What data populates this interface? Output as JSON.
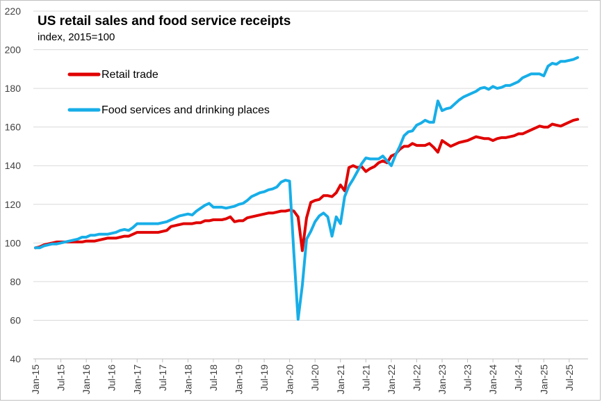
{
  "chart_data": {
    "type": "line",
    "title": "US retail sales and food service receipts",
    "subtitle": "index, 2015=100",
    "xlabel": "",
    "ylabel": "",
    "ylim": [
      40,
      220
    ],
    "yticks": [
      40,
      60,
      80,
      100,
      120,
      140,
      160,
      180,
      200,
      220
    ],
    "x_start": "2015-01",
    "x_end": "2025-09",
    "x_ticks": [
      "Jan-15",
      "Jul-15",
      "Jan-16",
      "Jul-16",
      "Jan-17",
      "Jul-17",
      "Jan-18",
      "Jul-18",
      "Jan-19",
      "Jul-19",
      "Jan-20",
      "Jul-20",
      "Jan-21",
      "Jul-21",
      "Jan-22",
      "Jul-22",
      "Jan-23",
      "Jul-23",
      "Jan-24",
      "Jul-24",
      "Jan-25",
      "Jul-25"
    ],
    "grid": "horizontal",
    "legend_position": "top-left",
    "series": [
      {
        "name": "Retail trade",
        "color": "#e00000",
        "points": [
          [
            "2015-01",
            97.5
          ],
          [
            "2015-02",
            98.0
          ],
          [
            "2015-03",
            99.0
          ],
          [
            "2015-04",
            99.5
          ],
          [
            "2015-05",
            100.0
          ],
          [
            "2015-06",
            100.5
          ],
          [
            "2015-07",
            100.5
          ],
          [
            "2015-08",
            100.5
          ],
          [
            "2015-09",
            100.5
          ],
          [
            "2015-10",
            100.5
          ],
          [
            "2015-11",
            100.5
          ],
          [
            "2015-12",
            100.5
          ],
          [
            "2016-01",
            101.0
          ],
          [
            "2016-02",
            101.0
          ],
          [
            "2016-03",
            101.0
          ],
          [
            "2016-04",
            101.5
          ],
          [
            "2016-05",
            102.0
          ],
          [
            "2016-06",
            102.5
          ],
          [
            "2016-07",
            102.5
          ],
          [
            "2016-08",
            102.5
          ],
          [
            "2016-09",
            103.0
          ],
          [
            "2016-10",
            103.5
          ],
          [
            "2016-11",
            103.5
          ],
          [
            "2016-12",
            104.5
          ],
          [
            "2017-01",
            105.5
          ],
          [
            "2017-02",
            105.5
          ],
          [
            "2017-03",
            105.5
          ],
          [
            "2017-04",
            105.5
          ],
          [
            "2017-05",
            105.5
          ],
          [
            "2017-06",
            105.5
          ],
          [
            "2017-07",
            106.0
          ],
          [
            "2017-08",
            106.5
          ],
          [
            "2017-09",
            108.5
          ],
          [
            "2017-10",
            109.0
          ],
          [
            "2017-11",
            109.5
          ],
          [
            "2017-12",
            110.0
          ],
          [
            "2018-01",
            110.0
          ],
          [
            "2018-02",
            110.0
          ],
          [
            "2018-03",
            110.5
          ],
          [
            "2018-04",
            110.5
          ],
          [
            "2018-05",
            111.5
          ],
          [
            "2018-06",
            111.5
          ],
          [
            "2018-07",
            112.0
          ],
          [
            "2018-08",
            112.0
          ],
          [
            "2018-09",
            112.0
          ],
          [
            "2018-10",
            112.5
          ],
          [
            "2018-11",
            113.5
          ],
          [
            "2018-12",
            111.0
          ],
          [
            "2019-01",
            111.5
          ],
          [
            "2019-02",
            111.5
          ],
          [
            "2019-03",
            113.0
          ],
          [
            "2019-04",
            113.5
          ],
          [
            "2019-05",
            114.0
          ],
          [
            "2019-06",
            114.5
          ],
          [
            "2019-07",
            115.0
          ],
          [
            "2019-08",
            115.5
          ],
          [
            "2019-09",
            115.5
          ],
          [
            "2019-10",
            116.0
          ],
          [
            "2019-11",
            116.5
          ],
          [
            "2019-12",
            116.5
          ],
          [
            "2020-01",
            117.0
          ],
          [
            "2020-02",
            116.5
          ],
          [
            "2020-03",
            113.5
          ],
          [
            "2020-04",
            96.0
          ],
          [
            "2020-05",
            113.0
          ],
          [
            "2020-06",
            121.0
          ],
          [
            "2020-07",
            122.0
          ],
          [
            "2020-08",
            122.5
          ],
          [
            "2020-09",
            124.5
          ],
          [
            "2020-10",
            124.5
          ],
          [
            "2020-11",
            124.0
          ],
          [
            "2020-12",
            126.0
          ],
          [
            "2021-01",
            130.0
          ],
          [
            "2021-02",
            127.0
          ],
          [
            "2021-03",
            139.0
          ],
          [
            "2021-04",
            140.0
          ],
          [
            "2021-05",
            139.0
          ],
          [
            "2021-06",
            139.5
          ],
          [
            "2021-07",
            137.0
          ],
          [
            "2021-08",
            138.5
          ],
          [
            "2021-09",
            139.5
          ],
          [
            "2021-10",
            141.5
          ],
          [
            "2021-11",
            142.5
          ],
          [
            "2021-12",
            141.5
          ],
          [
            "2022-01",
            145.0
          ],
          [
            "2022-02",
            146.0
          ],
          [
            "2022-03",
            148.5
          ],
          [
            "2022-04",
            150.0
          ],
          [
            "2022-05",
            150.0
          ],
          [
            "2022-06",
            151.5
          ],
          [
            "2022-07",
            150.5
          ],
          [
            "2022-08",
            150.5
          ],
          [
            "2022-09",
            150.5
          ],
          [
            "2022-10",
            151.5
          ],
          [
            "2022-11",
            149.5
          ],
          [
            "2022-12",
            147.0
          ],
          [
            "2023-01",
            153.0
          ],
          [
            "2023-02",
            151.5
          ],
          [
            "2023-03",
            150.0
          ],
          [
            "2023-04",
            151.0
          ],
          [
            "2023-05",
            152.0
          ],
          [
            "2023-06",
            152.5
          ],
          [
            "2023-07",
            153.0
          ],
          [
            "2023-08",
            154.0
          ],
          [
            "2023-09",
            155.0
          ],
          [
            "2023-10",
            154.5
          ],
          [
            "2023-11",
            154.0
          ],
          [
            "2023-12",
            154.0
          ],
          [
            "2024-01",
            153.0
          ],
          [
            "2024-02",
            154.0
          ],
          [
            "2024-03",
            154.5
          ],
          [
            "2024-04",
            154.5
          ],
          [
            "2024-05",
            155.0
          ],
          [
            "2024-06",
            155.5
          ],
          [
            "2024-07",
            156.5
          ],
          [
            "2024-08",
            156.5
          ],
          [
            "2024-09",
            157.5
          ],
          [
            "2024-10",
            158.5
          ],
          [
            "2024-11",
            159.5
          ],
          [
            "2024-12",
            160.5
          ],
          [
            "2025-01",
            160.0
          ],
          [
            "2025-02",
            160.0
          ],
          [
            "2025-03",
            161.5
          ],
          [
            "2025-04",
            161.0
          ],
          [
            "2025-05",
            160.5
          ],
          [
            "2025-06",
            161.5
          ],
          [
            "2025-07",
            162.5
          ],
          [
            "2025-08",
            163.5
          ],
          [
            "2025-09",
            164.0
          ]
        ]
      },
      {
        "name": "Food services and drinking places",
        "color": "#17aee8",
        "points": [
          [
            "2015-01",
            97.5
          ],
          [
            "2015-02",
            97.5
          ],
          [
            "2015-03",
            98.5
          ],
          [
            "2015-04",
            99.0
          ],
          [
            "2015-05",
            99.5
          ],
          [
            "2015-06",
            99.5
          ],
          [
            "2015-07",
            100.0
          ],
          [
            "2015-08",
            100.5
          ],
          [
            "2015-09",
            101.0
          ],
          [
            "2015-10",
            101.5
          ],
          [
            "2015-11",
            102.0
          ],
          [
            "2015-12",
            103.0
          ],
          [
            "2016-01",
            103.0
          ],
          [
            "2016-02",
            104.0
          ],
          [
            "2016-03",
            104.0
          ],
          [
            "2016-04",
            104.5
          ],
          [
            "2016-05",
            104.5
          ],
          [
            "2016-06",
            104.5
          ],
          [
            "2016-07",
            105.0
          ],
          [
            "2016-08",
            105.5
          ],
          [
            "2016-09",
            106.5
          ],
          [
            "2016-10",
            107.0
          ],
          [
            "2016-11",
            106.5
          ],
          [
            "2016-12",
            108.0
          ],
          [
            "2017-01",
            110.0
          ],
          [
            "2017-02",
            110.0
          ],
          [
            "2017-03",
            110.0
          ],
          [
            "2017-04",
            110.0
          ],
          [
            "2017-05",
            110.0
          ],
          [
            "2017-06",
            110.0
          ],
          [
            "2017-07",
            110.5
          ],
          [
            "2017-08",
            111.0
          ],
          [
            "2017-09",
            112.0
          ],
          [
            "2017-10",
            113.0
          ],
          [
            "2017-11",
            114.0
          ],
          [
            "2017-12",
            114.5
          ],
          [
            "2018-01",
            115.0
          ],
          [
            "2018-02",
            114.5
          ],
          [
            "2018-03",
            116.5
          ],
          [
            "2018-04",
            118.0
          ],
          [
            "2018-05",
            119.5
          ],
          [
            "2018-06",
            120.5
          ],
          [
            "2018-07",
            118.5
          ],
          [
            "2018-08",
            118.5
          ],
          [
            "2018-09",
            118.5
          ],
          [
            "2018-10",
            118.0
          ],
          [
            "2018-11",
            118.5
          ],
          [
            "2018-12",
            119.0
          ],
          [
            "2019-01",
            120.0
          ],
          [
            "2019-02",
            120.5
          ],
          [
            "2019-03",
            122.0
          ],
          [
            "2019-04",
            124.0
          ],
          [
            "2019-05",
            125.0
          ],
          [
            "2019-06",
            126.0
          ],
          [
            "2019-07",
            126.5
          ],
          [
            "2019-08",
            127.5
          ],
          [
            "2019-09",
            128.0
          ],
          [
            "2019-10",
            129.0
          ],
          [
            "2019-11",
            131.5
          ],
          [
            "2019-12",
            132.5
          ],
          [
            "2020-01",
            132.0
          ],
          [
            "2020-02",
            95.0
          ],
          [
            "2020-03",
            60.5
          ],
          [
            "2020-04",
            78.0
          ],
          [
            "2020-05",
            102.0
          ],
          [
            "2020-06",
            106.0
          ],
          [
            "2020-07",
            111.0
          ],
          [
            "2020-08",
            114.0
          ],
          [
            "2020-09",
            115.5
          ],
          [
            "2020-10",
            113.5
          ],
          [
            "2020-11",
            103.5
          ],
          [
            "2020-12",
            113.5
          ],
          [
            "2021-01",
            110.0
          ],
          [
            "2021-02",
            124.0
          ],
          [
            "2021-03",
            129.5
          ],
          [
            "2021-04",
            133.0
          ],
          [
            "2021-05",
            137.0
          ],
          [
            "2021-06",
            141.0
          ],
          [
            "2021-07",
            144.0
          ],
          [
            "2021-08",
            143.5
          ],
          [
            "2021-09",
            143.5
          ],
          [
            "2021-10",
            143.5
          ],
          [
            "2021-11",
            145.0
          ],
          [
            "2021-12",
            142.5
          ],
          [
            "2022-01",
            140.0
          ],
          [
            "2022-02",
            145.5
          ],
          [
            "2022-03",
            150.0
          ],
          [
            "2022-04",
            155.5
          ],
          [
            "2022-05",
            157.5
          ],
          [
            "2022-06",
            158.0
          ],
          [
            "2022-07",
            161.0
          ],
          [
            "2022-08",
            162.0
          ],
          [
            "2022-09",
            163.5
          ],
          [
            "2022-10",
            162.5
          ],
          [
            "2022-11",
            162.5
          ],
          [
            "2022-12",
            173.5
          ],
          [
            "2023-01",
            168.5
          ],
          [
            "2023-02",
            169.5
          ],
          [
            "2023-03",
            170.0
          ],
          [
            "2023-04",
            172.0
          ],
          [
            "2023-05",
            174.0
          ],
          [
            "2023-06",
            175.5
          ],
          [
            "2023-07",
            176.5
          ],
          [
            "2023-08",
            177.5
          ],
          [
            "2023-09",
            178.5
          ],
          [
            "2023-10",
            180.0
          ],
          [
            "2023-11",
            180.5
          ],
          [
            "2023-12",
            179.5
          ],
          [
            "2024-01",
            181.0
          ],
          [
            "2024-02",
            180.0
          ],
          [
            "2024-03",
            180.5
          ],
          [
            "2024-04",
            181.5
          ],
          [
            "2024-05",
            181.5
          ],
          [
            "2024-06",
            182.5
          ],
          [
            "2024-07",
            183.5
          ],
          [
            "2024-08",
            185.5
          ],
          [
            "2024-09",
            186.5
          ],
          [
            "2024-10",
            187.5
          ],
          [
            "2024-11",
            187.5
          ],
          [
            "2024-12",
            187.5
          ],
          [
            "2025-01",
            186.5
          ],
          [
            "2025-02",
            191.5
          ],
          [
            "2025-03",
            193.0
          ],
          [
            "2025-04",
            192.5
          ],
          [
            "2025-05",
            194.0
          ],
          [
            "2025-06",
            194.0
          ],
          [
            "2025-07",
            194.5
          ],
          [
            "2025-08",
            195.0
          ],
          [
            "2025-09",
            196.0
          ]
        ]
      }
    ]
  }
}
